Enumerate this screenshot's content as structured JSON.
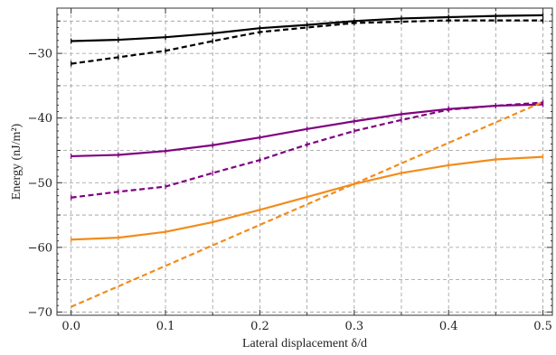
{
  "chart_data": {
    "type": "line",
    "xlabel": "Lateral displacement δ/d",
    "ylabel": "Energy (nJ/m²)",
    "xlim": [
      -0.015,
      0.51
    ],
    "ylim": [
      -70.5,
      -23.0
    ],
    "grid": true,
    "x_ticks": [
      0.0,
      0.1,
      0.2,
      0.3,
      0.4,
      0.5
    ],
    "x_tick_labels": [
      "0.0",
      "0.1",
      "0.2",
      "0.3",
      "0.4",
      "0.5"
    ],
    "y_ticks": [
      -30,
      -40,
      -50,
      -60,
      -70
    ],
    "y_tick_labels": [
      "−30",
      "−40",
      "−50",
      "−60",
      "−70"
    ],
    "x_grid": [
      0.0,
      0.05,
      0.1,
      0.15,
      0.2,
      0.25,
      0.3,
      0.35,
      0.4,
      0.45,
      0.5
    ],
    "y_grid": [
      -25,
      -30,
      -35,
      -40,
      -45,
      -50,
      -55,
      -60,
      -65,
      -70
    ],
    "series": [
      {
        "color": "#000000",
        "dash": "solid",
        "x": [
          0.0,
          0.05,
          0.1,
          0.15,
          0.2,
          0.25,
          0.3,
          0.35,
          0.4,
          0.45,
          0.5
        ],
        "values": [
          -28.1,
          -27.9,
          -27.5,
          -26.9,
          -26.1,
          -25.6,
          -25.0,
          -24.6,
          -24.4,
          -24.2,
          -24.1
        ]
      },
      {
        "color": "#000000",
        "dash": "dashed",
        "x": [
          0.0,
          0.05,
          0.1,
          0.15,
          0.2,
          0.25,
          0.3,
          0.35,
          0.4,
          0.45,
          0.5
        ],
        "values": [
          -31.6,
          -30.6,
          -29.6,
          -28.1,
          -26.7,
          -26.0,
          -25.3,
          -25.1,
          -24.9,
          -24.9,
          -24.9
        ]
      },
      {
        "color": "#800080",
        "dash": "solid",
        "x": [
          0.0,
          0.05,
          0.1,
          0.15,
          0.2,
          0.25,
          0.3,
          0.35,
          0.4,
          0.45,
          0.5
        ],
        "values": [
          -45.9,
          -45.7,
          -45.1,
          -44.2,
          -43.0,
          -41.7,
          -40.5,
          -39.4,
          -38.6,
          -38.1,
          -37.9
        ]
      },
      {
        "color": "#800080",
        "dash": "dashed",
        "x": [
          0.0,
          0.05,
          0.1,
          0.15,
          0.2,
          0.25,
          0.3,
          0.35,
          0.4,
          0.45,
          0.5
        ],
        "values": [
          -52.3,
          -51.4,
          -50.6,
          -48.5,
          -46.5,
          -44.1,
          -42.0,
          -40.3,
          -38.7,
          -38.1,
          -37.6
        ]
      },
      {
        "color": "#f28c1c",
        "dash": "solid",
        "x": [
          0.0,
          0.05,
          0.1,
          0.15,
          0.2,
          0.25,
          0.3,
          0.35,
          0.4,
          0.45,
          0.5
        ],
        "values": [
          -58.8,
          -58.5,
          -57.6,
          -56.1,
          -54.2,
          -52.2,
          -50.2,
          -48.5,
          -47.3,
          -46.4,
          -46.0
        ]
      },
      {
        "color": "#f28c1c",
        "dash": "dashed",
        "x": [
          0.0,
          0.5
        ],
        "values": [
          -69.2,
          -37.5
        ]
      }
    ]
  }
}
